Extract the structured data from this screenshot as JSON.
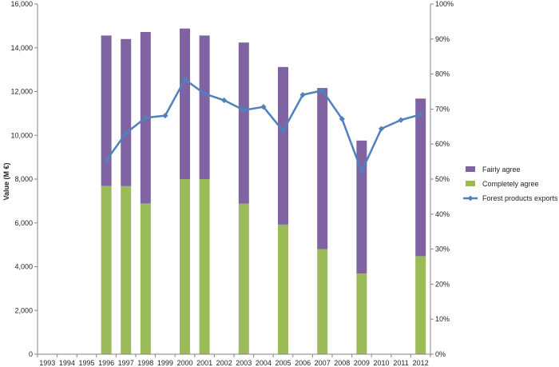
{
  "chart_data": {
    "type": "bar",
    "categories": [
      "1993",
      "1994",
      "1995",
      "1996",
      "1997",
      "1998",
      "1999",
      "2000",
      "2001",
      "2002",
      "2003",
      "2004",
      "2005",
      "2006",
      "2007",
      "2008",
      "2009",
      "2010",
      "2011",
      "2012"
    ],
    "ylabel": "Value (M €)",
    "ylim": [
      0,
      16000
    ],
    "yticks": [
      "0",
      "2,000",
      "4,000",
      "6,000",
      "8,000",
      "10,000",
      "12,000",
      "14,000",
      "16,000"
    ],
    "y2lim": [
      0,
      100
    ],
    "y2ticks": [
      "0%",
      "10%",
      "20%",
      "30%",
      "40%",
      "50%",
      "60%",
      "70%",
      "80%",
      "90%",
      "100%"
    ],
    "grid": false,
    "legend_position": "right",
    "series": [
      {
        "name": "Completely agree",
        "kind": "stacked-bar",
        "axis": "right",
        "color": "#9BBB59",
        "values": [
          null,
          null,
          null,
          48,
          48,
          43,
          null,
          50,
          50,
          null,
          43,
          null,
          37,
          null,
          30,
          null,
          23,
          null,
          null,
          28
        ]
      },
      {
        "name": "Fairly agree",
        "kind": "stacked-bar",
        "axis": "right",
        "color": "#8064A2",
        "values": [
          null,
          null,
          null,
          43,
          42,
          49,
          null,
          43,
          41,
          null,
          46,
          null,
          45,
          null,
          46,
          null,
          38,
          null,
          null,
          45
        ]
      },
      {
        "name": "Forest products exports",
        "kind": "line",
        "axis": "left",
        "color": "#4F81BD",
        "values": [
          null,
          null,
          null,
          8850,
          10100,
          10800,
          10900,
          12550,
          11900,
          11600,
          11150,
          11300,
          10200,
          11850,
          12050,
          10750,
          8350,
          10300,
          10700,
          10950
        ]
      }
    ]
  }
}
